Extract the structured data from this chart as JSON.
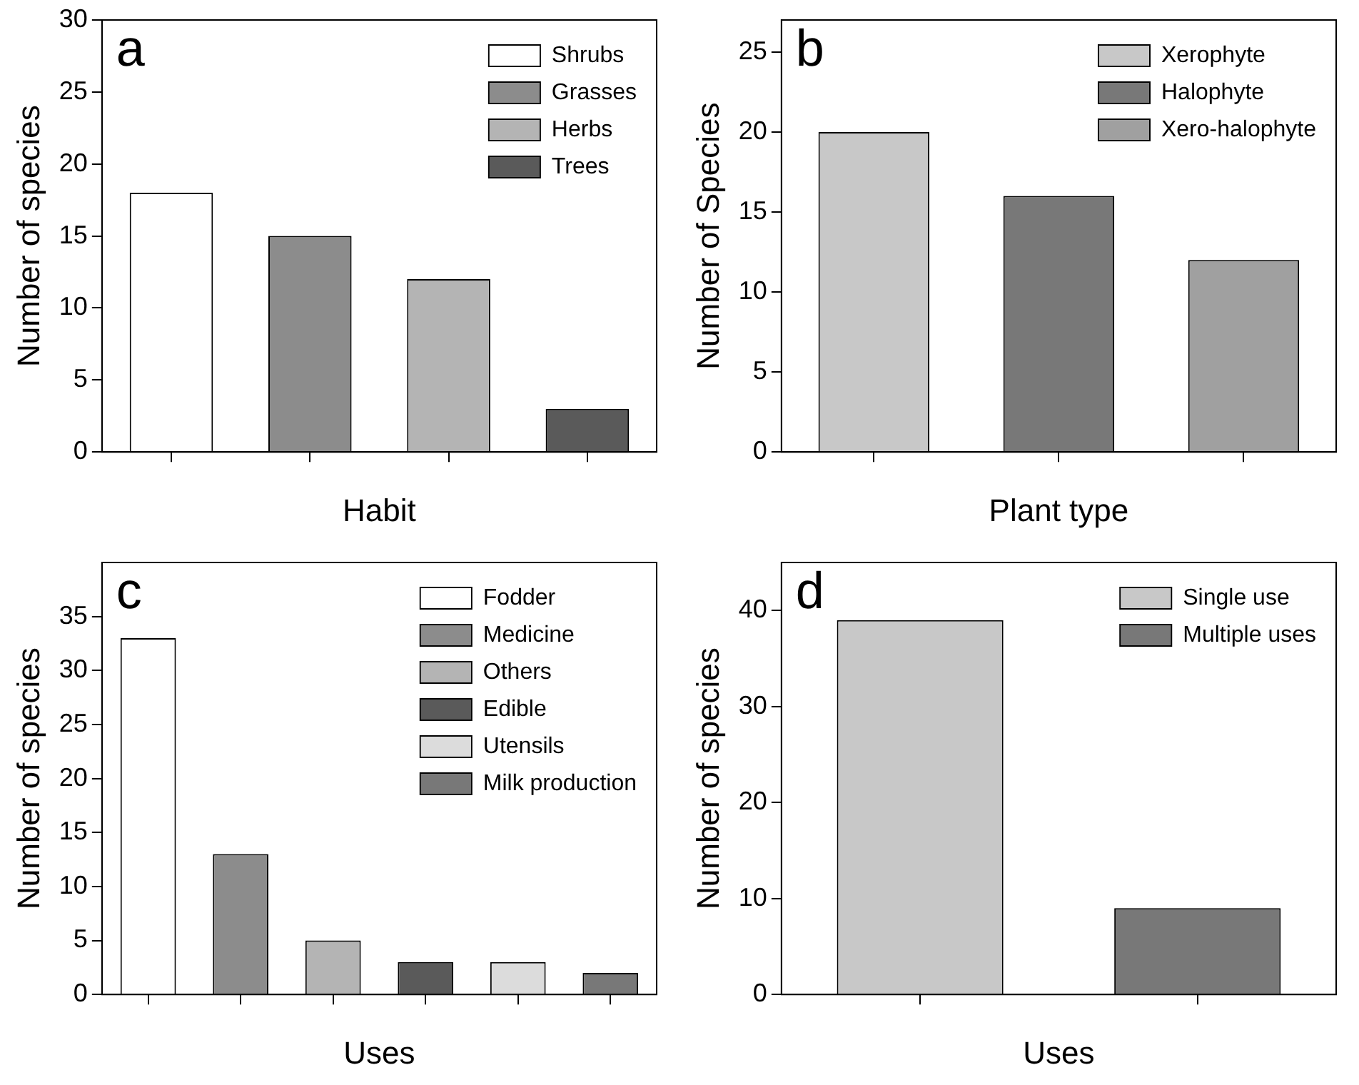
{
  "chart_data": [
    {
      "type": "bar",
      "title": "a",
      "xlabel": "Habit",
      "ylabel": "Number of species",
      "categories": [
        null,
        null,
        null,
        null
      ],
      "ylim": [
        0,
        30
      ],
      "yticks": [
        0,
        5,
        10,
        15,
        20,
        25,
        30
      ],
      "legend": "top right",
      "tick_labels": "y",
      "series": [
        {
          "name": "Shrubs",
          "color": "#ffffff",
          "values": [
            18,
            null,
            null,
            null
          ]
        },
        {
          "name": "Grasses",
          "color": "#8c8c8c",
          "values": [
            null,
            15,
            null,
            null
          ]
        },
        {
          "name": "Herbs",
          "color": "#b4b4b4",
          "values": [
            null,
            null,
            12,
            null
          ]
        },
        {
          "name": "Trees",
          "color": "#5a5a5a",
          "values": [
            null,
            null,
            null,
            3
          ]
        }
      ]
    },
    {
      "type": "bar",
      "title": "b",
      "xlabel": "Plant type",
      "ylabel": "Number of Species",
      "categories": [
        null,
        null,
        null
      ],
      "ylim": [
        0,
        27
      ],
      "yticks": [
        0,
        5,
        10,
        15,
        20,
        25
      ],
      "legend": "top right",
      "tick_labels": "y",
      "series": [
        {
          "name": "Xerophyte",
          "color": "#c8c8c8",
          "values": [
            20,
            null,
            null
          ]
        },
        {
          "name": "Halophyte",
          "color": "#787878",
          "values": [
            null,
            16,
            null
          ]
        },
        {
          "name": "Xero-halophyte",
          "color": "#a0a0a0",
          "values": [
            null,
            null,
            12
          ]
        }
      ]
    },
    {
      "type": "bar",
      "title": "c",
      "xlabel": "Uses",
      "ylabel": "Number of species",
      "categories": [
        null,
        null,
        null,
        null,
        null,
        null
      ],
      "ylim": [
        0,
        40
      ],
      "yticks": [
        0,
        5,
        10,
        15,
        20,
        25,
        30,
        35
      ],
      "legend": "top right",
      "tick_labels": "y",
      "series": [
        {
          "name": "Fodder",
          "color": "#ffffff",
          "values": [
            33,
            null,
            null,
            null,
            null,
            null
          ]
        },
        {
          "name": "Medicine",
          "color": "#8c8c8c",
          "values": [
            null,
            13,
            null,
            null,
            null,
            null
          ]
        },
        {
          "name": "Others",
          "color": "#b4b4b4",
          "values": [
            null,
            null,
            5,
            null,
            null,
            null
          ]
        },
        {
          "name": "Edible",
          "color": "#5a5a5a",
          "values": [
            null,
            null,
            null,
            3,
            null,
            null
          ]
        },
        {
          "name": "Utensils",
          "color": "#dcdcdc",
          "values": [
            null,
            null,
            null,
            null,
            3,
            null
          ]
        },
        {
          "name": "Milk production",
          "color": "#787878",
          "values": [
            null,
            null,
            null,
            null,
            null,
            2
          ]
        }
      ]
    },
    {
      "type": "bar",
      "title": "d",
      "xlabel": "Uses",
      "ylabel": "Number of species",
      "categories": [
        null,
        null
      ],
      "ylim": [
        0,
        45
      ],
      "yticks": [
        0,
        10,
        20,
        30,
        40
      ],
      "legend": "top right",
      "tick_labels": "y",
      "series": [
        {
          "name": "Single use",
          "color": "#c8c8c8",
          "values": [
            39,
            null
          ]
        },
        {
          "name": "Multiple uses",
          "color": "#787878",
          "values": [
            null,
            9
          ]
        }
      ]
    }
  ]
}
